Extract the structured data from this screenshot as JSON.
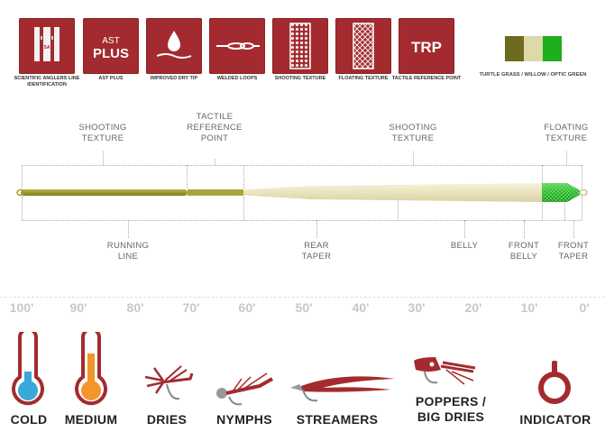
{
  "features": [
    {
      "name": "scientific-anglers-line-id",
      "label": "SCIENTIFIC ANGLERS LINE IDENTIFICATION",
      "icon_text": "SA"
    },
    {
      "name": "ast-plus",
      "label": "AST PLUS",
      "icon_text": "AST PLUS"
    },
    {
      "name": "improved-dry-tip",
      "label": "IMPROVED DRY TIP"
    },
    {
      "name": "welded-loops",
      "label": "WELDED LOOPS"
    },
    {
      "name": "shooting-texture",
      "label": "SHOOTING TEXTURE"
    },
    {
      "name": "floating-texture",
      "label": "FLOATING TEXTURE"
    },
    {
      "name": "tactile-reference-point",
      "label": "TACTILE REFERENCE POINT",
      "icon_text": "TRP"
    }
  ],
  "colors": {
    "label": "TURTLE GRASS / WILLOW / OPTIC GREEN",
    "swatches": [
      "#6e6a1f",
      "#ddd9a8",
      "#1fae1e"
    ]
  },
  "diagram": {
    "top_labels": [
      {
        "text": "SHOOTING\nTEXTURE"
      },
      {
        "text": "TACTILE\nREFERENCE\nPOINT"
      },
      {
        "text": "SHOOTING\nTEXTURE"
      },
      {
        "text": "FLOATING\nTEXTURE"
      }
    ],
    "bottom_labels": [
      {
        "text": "RUNNING\nLINE"
      },
      {
        "text": "REAR\nTAPER"
      },
      {
        "text": "BELLY"
      },
      {
        "text": "FRONT\nBELLY"
      },
      {
        "text": "FRONT\nTAPER"
      }
    ]
  },
  "scale": [
    "100'",
    "90'",
    "80'",
    "70'",
    "60'",
    "50'",
    "40'",
    "30'",
    "20'",
    "10'",
    "0'"
  ],
  "flies": [
    {
      "name": "cold",
      "label": "COLD"
    },
    {
      "name": "medium",
      "label": "MEDIUM"
    },
    {
      "name": "dries",
      "label": "DRIES"
    },
    {
      "name": "nymphs",
      "label": "NYMPHS"
    },
    {
      "name": "streamers",
      "label": "STREAMERS"
    },
    {
      "name": "poppers-big-dries",
      "label": "POPPERS /\nBIG DRIES"
    },
    {
      "name": "indicator",
      "label": "INDICATOR"
    }
  ]
}
